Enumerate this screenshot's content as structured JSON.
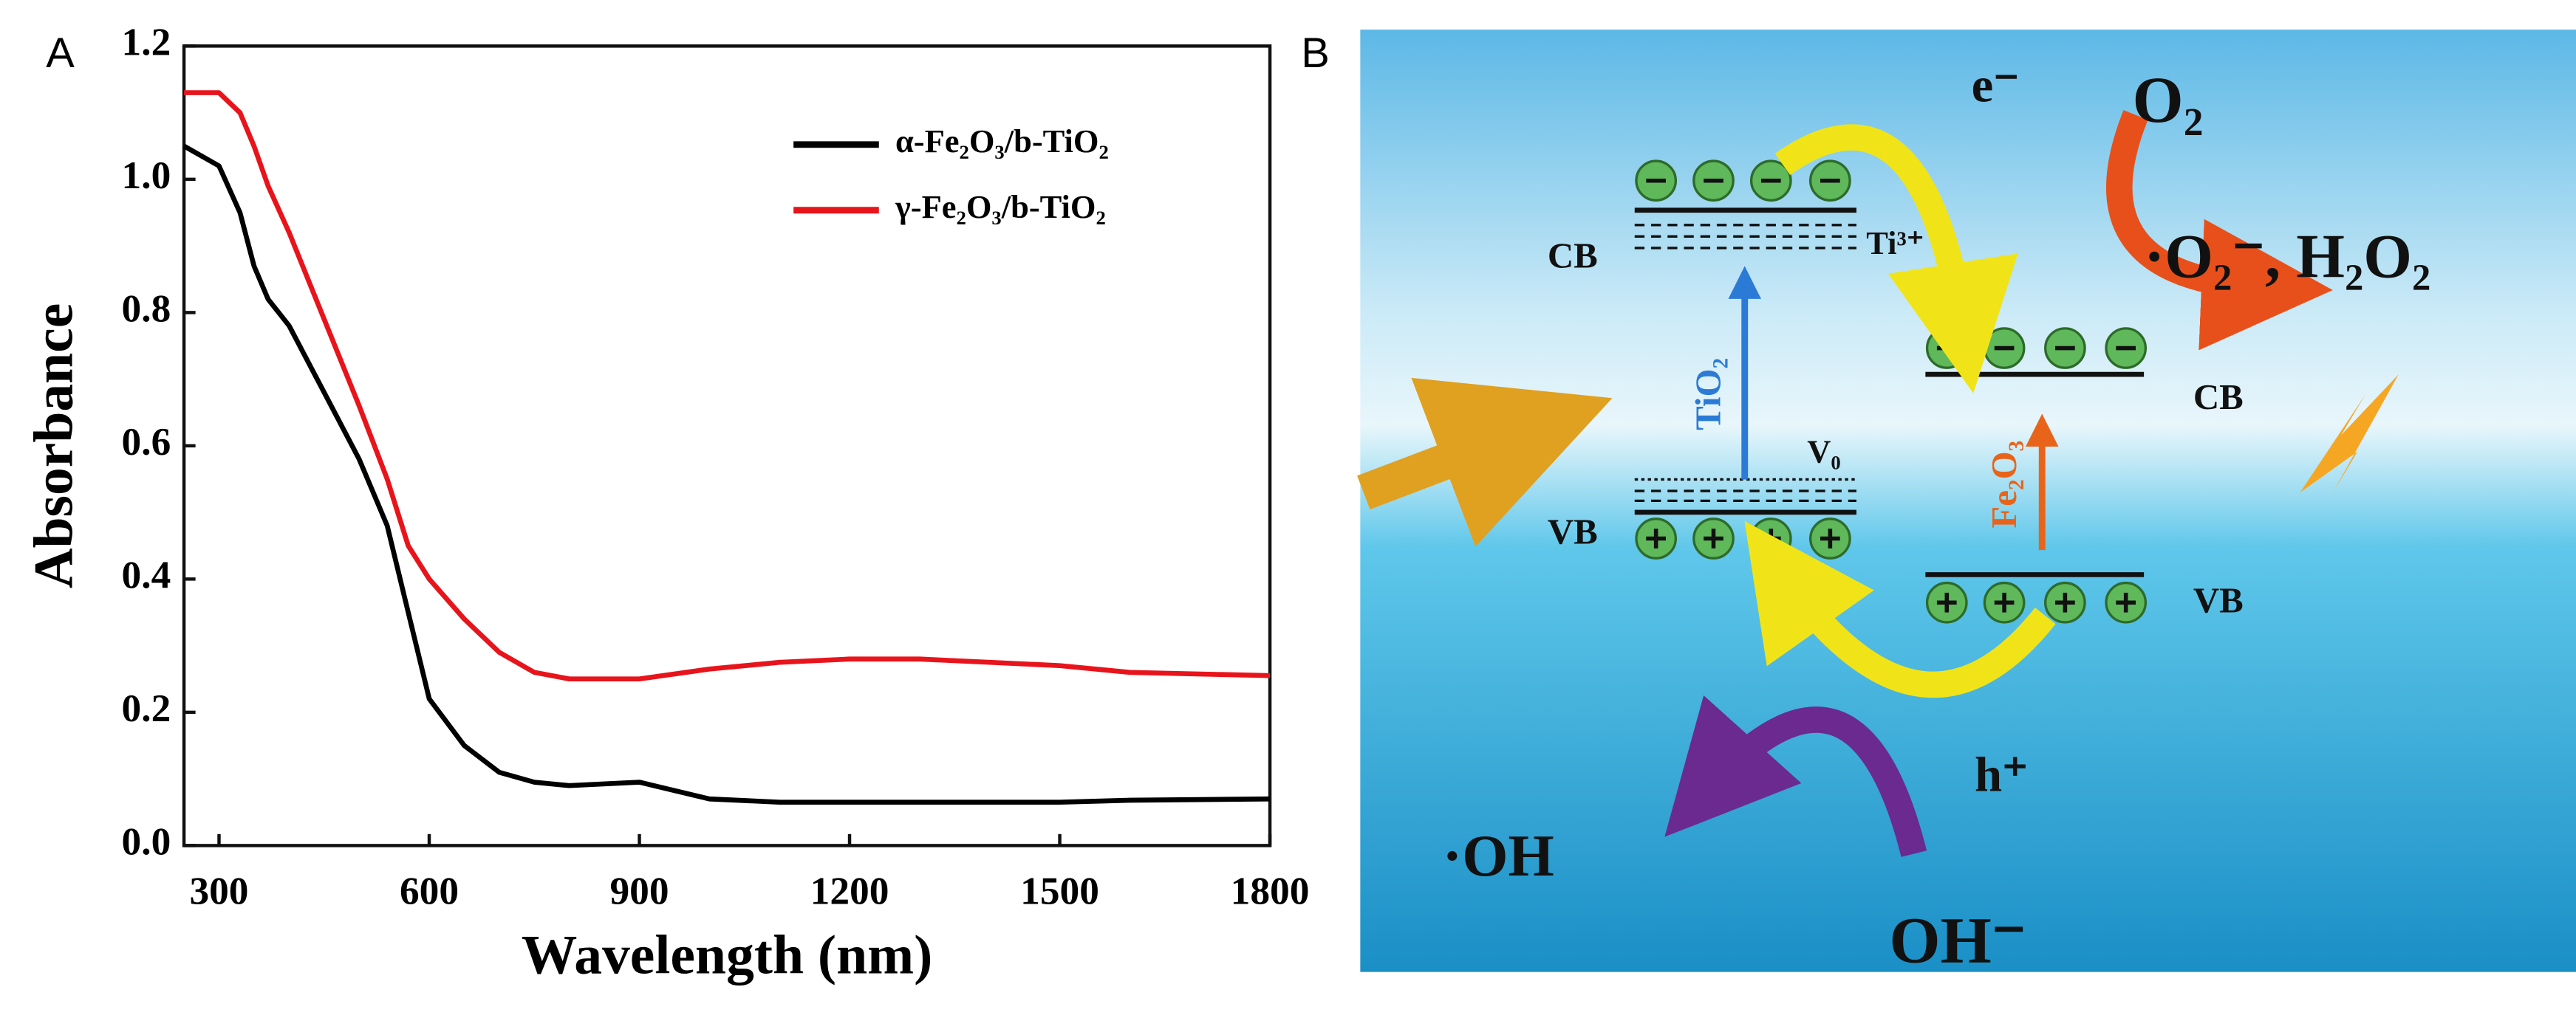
{
  "panel_labels": [
    "A",
    "B"
  ],
  "chart_data": {
    "type": "line",
    "xlabel": "Wavelength (nm)",
    "ylabel": "Absorbance",
    "x": [
      250,
      300,
      330,
      350,
      370,
      400,
      450,
      500,
      540,
      570,
      600,
      650,
      700,
      750,
      800,
      900,
      1000,
      1100,
      1200,
      1300,
      1400,
      1500,
      1600,
      1800
    ],
    "series": [
      {
        "name": "α-Fe₂O₃/b-TiO₂",
        "color": "#000000",
        "values": [
          1.05,
          1.02,
          0.95,
          0.87,
          0.82,
          0.78,
          0.68,
          0.58,
          0.48,
          0.35,
          0.22,
          0.15,
          0.11,
          0.095,
          0.09,
          0.095,
          0.07,
          0.065,
          0.065,
          0.065,
          0.065,
          0.065,
          0.068,
          0.07
        ]
      },
      {
        "name": "γ-Fe₂O₃/b-TiO₂",
        "color": "#e8141b",
        "values": [
          1.13,
          1.13,
          1.1,
          1.05,
          0.99,
          0.92,
          0.79,
          0.66,
          0.55,
          0.45,
          0.4,
          0.34,
          0.29,
          0.26,
          0.25,
          0.25,
          0.265,
          0.275,
          0.28,
          0.28,
          0.275,
          0.27,
          0.26,
          0.255
        ]
      }
    ],
    "xlim": [
      250,
      1800
    ],
    "xticks": [
      300,
      600,
      900,
      1200,
      1500,
      1800
    ],
    "ylim": [
      0,
      1.2
    ],
    "yticks": [
      {
        "value": 0,
        "label": "0.0"
      },
      0.2,
      0.4,
      0.6,
      0.8,
      {
        "value": 1,
        "label": "1.0"
      },
      1.2
    ],
    "legend": "upper right"
  },
  "diagram": {
    "labels": {
      "electron": "e⁻",
      "oxygen": "O₂",
      "products": "·O₂⁻, H₂O₂",
      "tio2_cb": "CB",
      "ti3": "Ti³⁺",
      "tio2": "TiO₂",
      "v0": "V₀",
      "tio2_vb": "VB",
      "fe_cb": "CB",
      "fe2o3": "Fe₂O₃",
      "fe_vb": "VB",
      "hole": "h⁺",
      "hydroxyl": "·OH",
      "hydroxide": "OH⁻"
    }
  }
}
